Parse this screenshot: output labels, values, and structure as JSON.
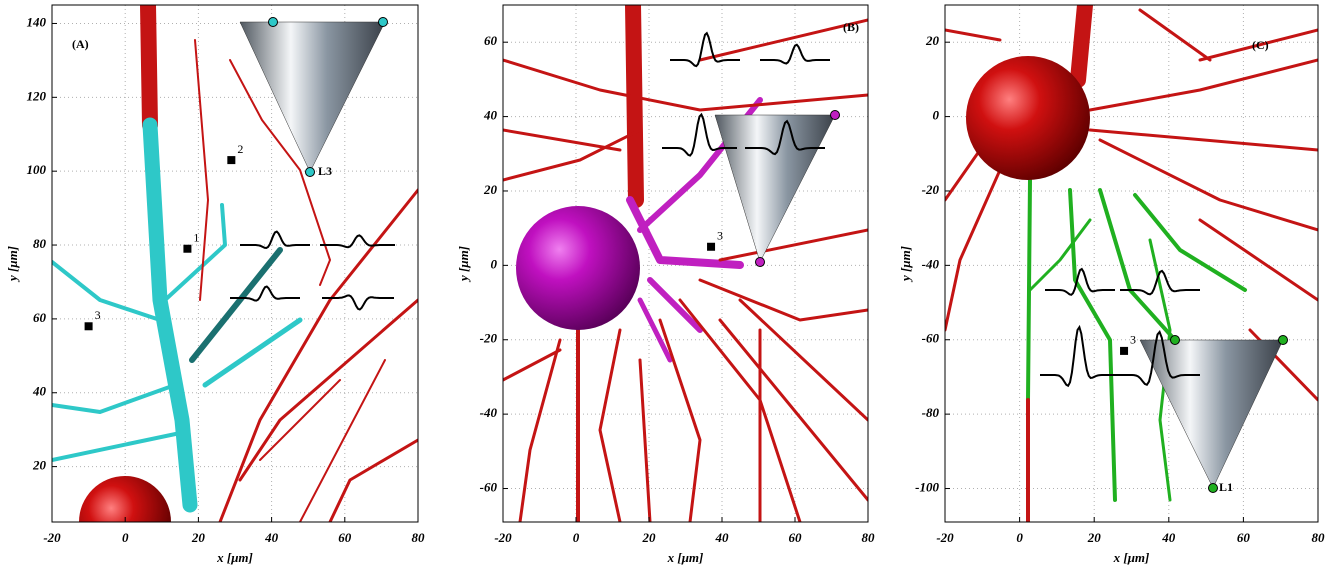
{
  "chart_data": [
    {
      "type": "scatter",
      "x": [
        17,
        29,
        -10
      ],
      "values": [
        79,
        103,
        58
      ],
      "point_labels": [
        "1",
        "2",
        "3"
      ],
      "color": "#000000",
      "xlim": [
        -20,
        80
      ],
      "ylim": [
        5,
        145
      ],
      "xticks": [
        -20,
        0,
        20,
        40,
        60,
        80
      ],
      "yticks": [
        20,
        40,
        60,
        80,
        100,
        120,
        140
      ],
      "xlabel": "x [μm]",
      "ylabel": "y [μm]",
      "annotations": [
        "(A)",
        "L3"
      ],
      "grid": true
    },
    {
      "type": "scatter",
      "x": [
        37
      ],
      "values": [
        5
      ],
      "point_labels": [
        "3"
      ],
      "color": "#000000",
      "xlim": [
        -20,
        80
      ],
      "ylim": [
        -69,
        70
      ],
      "xticks": [
        -20,
        0,
        20,
        40,
        60,
        80
      ],
      "yticks": [
        -60,
        -40,
        -20,
        0,
        20,
        40,
        60
      ],
      "xlabel": "x [μm]",
      "ylabel": "y [μm]",
      "annotations": [
        "(B)"
      ],
      "grid": true
    },
    {
      "type": "scatter",
      "x": [
        28
      ],
      "values": [
        -63
      ],
      "point_labels": [
        "3"
      ],
      "color": "#000000",
      "xlim": [
        -20,
        80
      ],
      "ylim": [
        -109,
        30
      ],
      "xticks": [
        -20,
        0,
        20,
        40,
        60,
        80
      ],
      "yticks": [
        -100,
        -80,
        -60,
        -40,
        -20,
        0,
        20
      ],
      "xlabel": "x [μm]",
      "ylabel": "y [μm]",
      "annotations": [
        "(C)",
        "L1"
      ],
      "grid": true
    }
  ]
}
